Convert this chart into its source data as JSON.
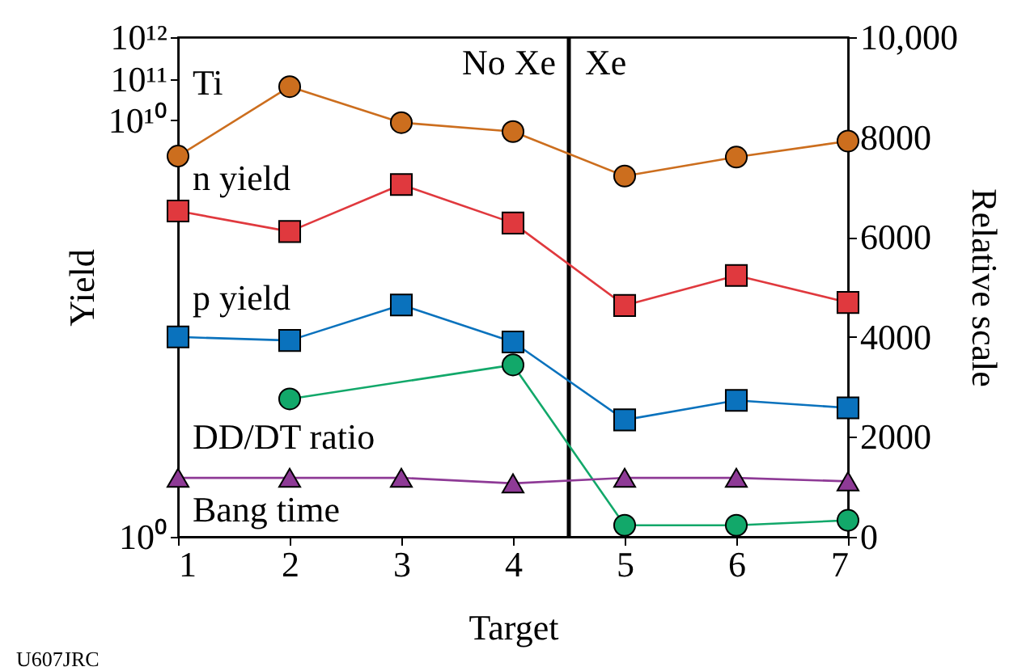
{
  "chart_data": {
    "type": "line",
    "xlabel": "Target",
    "ylabel": "Yield",
    "y2label": "Relative scale",
    "x": [
      1,
      2,
      3,
      4,
      5,
      6,
      7
    ],
    "series": [
      {
        "name": "Ti",
        "color": "#cc6e1e",
        "marker": "circle",
        "axis": "y2",
        "values": [
          7620,
          9010,
          8290,
          8110,
          7220,
          7600,
          7920
        ]
      },
      {
        "name": "n yield",
        "color": "#e0393e",
        "marker": "square",
        "axis": "y2",
        "values": [
          6520,
          6110,
          7050,
          6280,
          4630,
          5230,
          4690
        ]
      },
      {
        "name": "p yield",
        "color": "#0a72bd",
        "marker": "square",
        "axis": "y2",
        "values": [
          4000,
          3930,
          4640,
          3900,
          2340,
          2730,
          2580
        ]
      },
      {
        "name": "DD/DT ratio",
        "color": "#12a86a",
        "marker": "circle",
        "axis": "y2",
        "values": [
          null,
          2760,
          null,
          3440,
          230,
          230,
          330
        ]
      },
      {
        "name": "Bang time",
        "color": "#8e3a96",
        "marker": "triangle",
        "axis": "y2",
        "values": [
          1180,
          1180,
          1180,
          1070,
          1180,
          1180,
          1110
        ]
      }
    ],
    "xlim": [
      1,
      7
    ],
    "xticks": [
      1,
      2,
      3,
      4,
      5,
      6,
      7
    ],
    "log": "y",
    "ylim": [
      1,
      1000000000000
    ],
    "yticks": [
      {
        "value": 1,
        "label": "10⁰"
      },
      {
        "value": 10000000000,
        "label": "10¹⁰"
      },
      {
        "value": 100000000000,
        "label": "10¹¹"
      },
      {
        "value": 1000000000000,
        "label": "10¹²"
      }
    ],
    "y2lim": [
      0,
      10000
    ],
    "y2ticks": [
      0,
      2000,
      4000,
      6000,
      8000,
      {
        "value": 10000,
        "label": "10,000"
      }
    ],
    "ref_lines": [
      {
        "axis": "x",
        "value": 4.5,
        "color": "#000000"
      }
    ],
    "annotations": [
      "No Xe",
      "Xe",
      "U607JRC"
    ],
    "grid": false,
    "legend": false,
    "line_style": "solid"
  }
}
